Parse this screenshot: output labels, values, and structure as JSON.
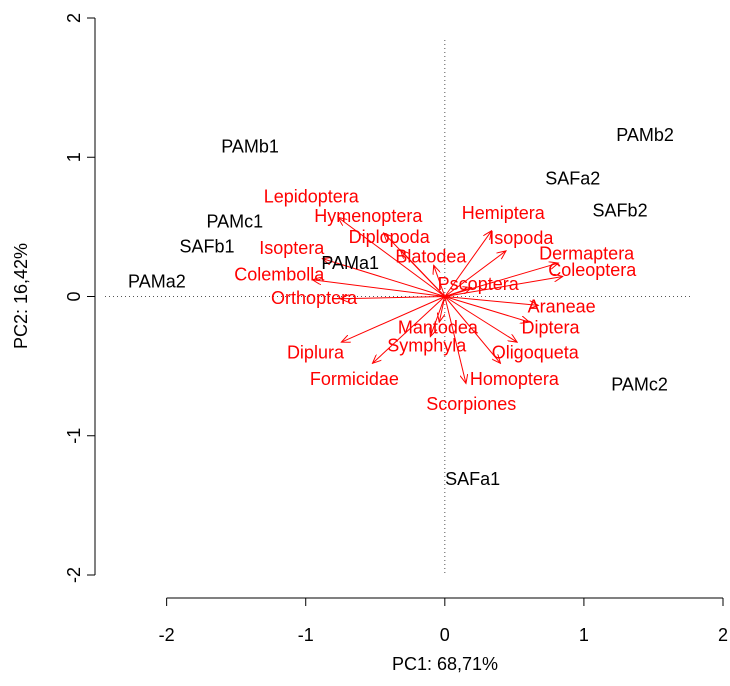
{
  "chart_data": {
    "type": "biplot",
    "xlabel": "PC1: 68,71%",
    "ylabel": "PC2: 16,42%",
    "xlim": [
      -2.4,
      2.0
    ],
    "ylim": [
      -2,
      2
    ],
    "xticks": [
      -2,
      -1,
      0,
      1,
      2
    ],
    "yticks": [
      -2,
      -1,
      0,
      1,
      2
    ],
    "samples": {
      "color": "#000000",
      "labels": [
        "PAMb1",
        "PAMb2",
        "SAFa2",
        "SAFb2",
        "PAMc1",
        "SAFb1",
        "PAMa2",
        "PAMa1",
        "PAMc2",
        "SAFa1"
      ],
      "x": [
        -1.4,
        1.44,
        0.92,
        1.26,
        -1.51,
        -1.71,
        -2.07,
        -0.68,
        1.4,
        0.2
      ],
      "y": [
        1.07,
        1.15,
        0.84,
        0.61,
        0.53,
        0.35,
        0.1,
        0.23,
        -0.64,
        -1.32
      ]
    },
    "variables": {
      "color": "#ff0000",
      "labels": [
        "Lepidoptera",
        "Hymenoptera",
        "Diplopoda",
        "Isoptera",
        "Colembolla",
        "Orthoptera",
        "Hemiptera",
        "Isopoda",
        "Blatodea",
        "Dermaptera",
        "Coleoptera",
        "Pscoptera",
        "Araneae",
        "Diptera",
        "Oligoqueta",
        "Mantodea",
        "Symphyla",
        "Diplura",
        "Formicidae",
        "Homoptera",
        "Scorpiones"
      ],
      "x": [
        -0.96,
        -0.55,
        -0.4,
        -1.1,
        -1.19,
        -0.94,
        0.42,
        0.55,
        -0.1,
        1.02,
        1.06,
        0.24,
        0.84,
        0.76,
        0.65,
        -0.05,
        -0.13,
        -0.93,
        -0.65,
        0.5,
        0.19
      ],
      "y": [
        0.71,
        0.57,
        0.42,
        0.34,
        0.15,
        -0.02,
        0.59,
        0.41,
        0.28,
        0.3,
        0.18,
        0.08,
        -0.08,
        -0.23,
        -0.41,
        -0.23,
        -0.36,
        -0.41,
        -0.6,
        -0.6,
        -0.78
      ]
    }
  }
}
